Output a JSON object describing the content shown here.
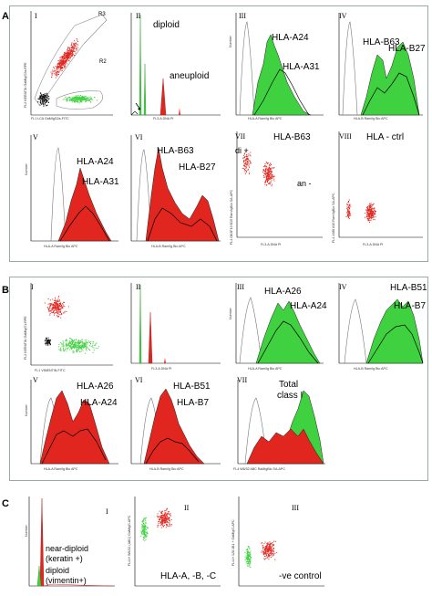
{
  "sections": {
    "A": {
      "label": "A",
      "panels": [
        {
          "roman": "I",
          "gates": [
            "R3",
            "R2"
          ],
          "ylabel": "FL2 KERATIN GaMIgG2a-RPE",
          "xlabel": "FL1 LCA GaMIgG2a-FITC"
        },
        {
          "roman": "II",
          "annotations": [
            "diploid",
            "aneuploid"
          ],
          "ylabel": "Number",
          "xlabel": "FL3-A  DNA  PI"
        },
        {
          "roman": "III",
          "annotations": [
            "HLA-A24",
            "HLA-A31"
          ],
          "ylabel": "Number",
          "xlabel": "HLA-A Ram/Ig Bio APC"
        },
        {
          "roman": "IV",
          "annotations": [
            "HLA-B63",
            "HLA-B27"
          ],
          "ylabel": "Number",
          "xlabel": "HLA-B Ram/Ig Bio APC"
        },
        {
          "roman": "V",
          "annotations": [
            "HLA-A24",
            "HLA-A31"
          ],
          "ylabel": "Number",
          "xlabel": "HLA-A Ram/Ig Bio APC"
        },
        {
          "roman": "VI",
          "annotations": [
            "HLA-B63",
            "HLA-B27"
          ],
          "ylabel": "Number",
          "xlabel": "HLA-B Ram/Ig Bio APC"
        },
        {
          "roman": "VII",
          "title": "HLA-B63",
          "annotations": [
            "di +",
            "an -"
          ],
          "ylabel": "FL4  OK3F10 B15 Ram/IgBio SA-APC",
          "xlabel": "FL3-A  DNA  PI"
        },
        {
          "roman": "VIII",
          "title": "HLA - ctrl",
          "ylabel": "FL4  4488 A10 Ram/IgBio SA-APC",
          "xlabel": "FL3-A  DNA  PI"
        }
      ]
    },
    "B": {
      "label": "B",
      "panels": [
        {
          "roman": "I",
          "ylabel": "FL2 KERATIN GaMIgG1-RPE",
          "xlabel": "FL1  VIMENTIN-FITC"
        },
        {
          "roman": "II",
          "ylabel": "Number",
          "xlabel": "FL3-A  DNA  PI"
        },
        {
          "roman": "III",
          "annotations": [
            "HLA-A26",
            "HLA-A24"
          ],
          "ylabel": "Number",
          "xlabel": "HLA-A Ram/Ig Bio APC"
        },
        {
          "roman": "IV",
          "annotations": [
            "HLA-B51",
            "HLA-B7"
          ],
          "ylabel": "Number",
          "xlabel": "HLA-B Ram/Ig Bio APC"
        },
        {
          "roman": "V",
          "annotations": [
            "HLA-A26",
            "HLA-A24"
          ],
          "ylabel": "Number",
          "xlabel": "HLA-A Ram/Ig Bio APC"
        },
        {
          "roman": "VI",
          "annotations": [
            "HLA-B51",
            "HLA-B7"
          ],
          "ylabel": "Number",
          "xlabel": "HLA-B Ram/Ig Bio APC"
        },
        {
          "roman": "VII",
          "annotations": [
            "Total",
            "class I"
          ],
          "ylabel": "Number",
          "xlabel": "FL4  W6/32 ABC  RaMIgBio SA-APC"
        }
      ]
    },
    "C": {
      "label": "C",
      "panels": [
        {
          "roman": "I",
          "annotations": [
            "near-diploid",
            "(keratin +)",
            "diploid",
            "(vimentin+)"
          ],
          "ylabel": "Number"
        },
        {
          "roman": "II",
          "annotations": [
            "HLA-A, -B, -C"
          ],
          "ylabel": "FL4-H  W6/32 (ABC)  GaMIgG-APC"
        },
        {
          "roman": "III",
          "annotations": [
            "-ve control"
          ],
          "ylabel": "FL4-H  128.1B1 + GaMIgG-APC"
        }
      ]
    }
  },
  "colors": {
    "red": "#e0261f",
    "green": "#3fd13f",
    "outline": "#555555",
    "frame": "#9aa9aa"
  }
}
